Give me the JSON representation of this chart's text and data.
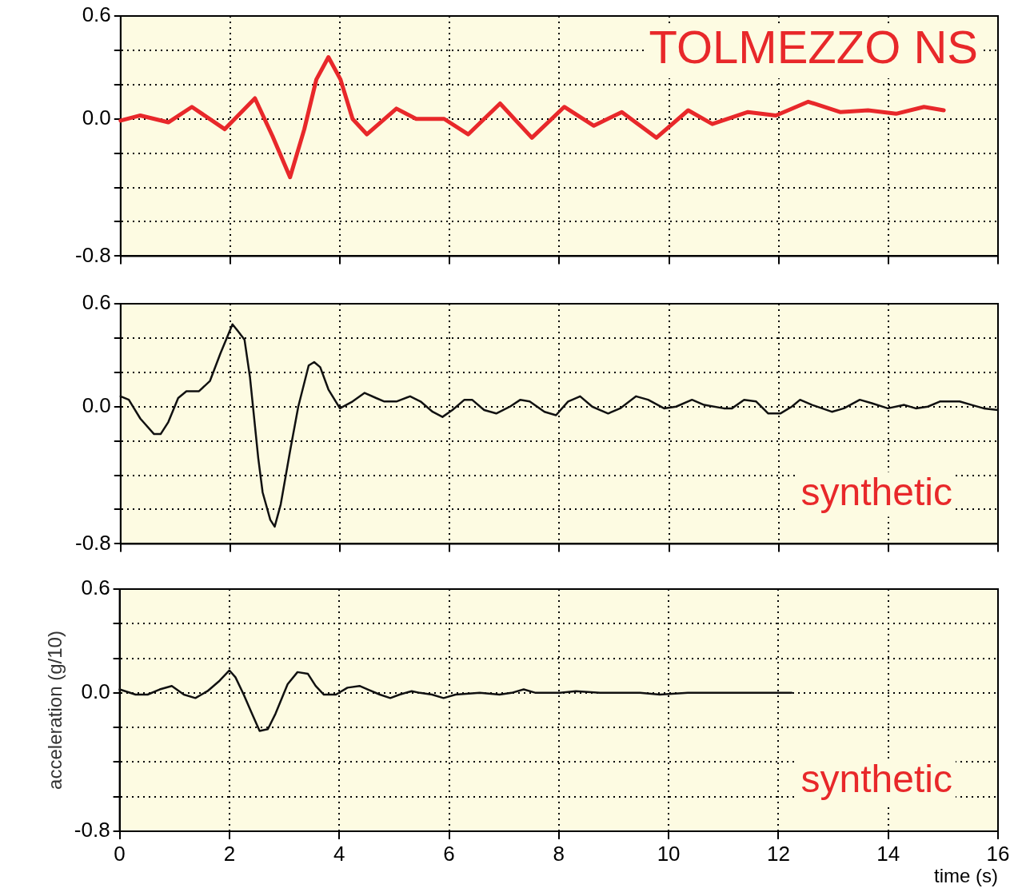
{
  "chart_data": [
    {
      "type": "line",
      "annotations": [
        "TOLMEZZO NS"
      ],
      "grid": true,
      "tick_labels": "y",
      "xlim": [
        0,
        16
      ],
      "xticks": [
        0,
        2,
        4,
        6,
        8,
        10,
        12,
        14,
        16
      ],
      "ylim": [
        -0.8,
        0.6
      ],
      "yticks": [
        -0.8,
        {
          "value": -0.6,
          "label": null
        },
        {
          "value": -0.4,
          "label": null
        },
        {
          "value": -0.2,
          "label": null
        },
        {
          "value": 0,
          "label": "0.0"
        },
        {
          "value": 0.2,
          "label": null
        },
        {
          "value": 0.4,
          "label": null
        },
        0.6
      ],
      "series": [
        {
          "color": "#e8282a",
          "x": [
            0,
            0.36,
            0.87,
            1.3,
            1.9,
            2.45,
            2.77,
            3.09,
            3.35,
            3.57,
            3.79,
            4.01,
            4.23,
            4.49,
            5.03,
            5.39,
            5.9,
            6.34,
            6.92,
            7.5,
            8.09,
            8.63,
            9.14,
            9.77,
            10.35,
            10.79,
            11.44,
            11.95,
            12.54,
            13.12,
            13.63,
            14.14,
            14.65,
            15.01
          ],
          "values": [
            -0.01,
            0.02,
            -0.02,
            0.07,
            -0.06,
            0.12,
            -0.1,
            -0.34,
            -0.06,
            0.23,
            0.36,
            0.23,
            0.0,
            -0.09,
            0.06,
            0.0,
            0.0,
            -0.09,
            0.09,
            -0.11,
            0.07,
            -0.04,
            0.04,
            -0.11,
            0.05,
            -0.03,
            0.04,
            0.02,
            0.1,
            0.04,
            0.05,
            0.03,
            0.07,
            0.05
          ]
        }
      ]
    },
    {
      "type": "line",
      "annotations": [
        "synthetic"
      ],
      "grid": true,
      "tick_labels": "y",
      "xlim": [
        0,
        16
      ],
      "xticks": [
        0,
        2,
        4,
        6,
        8,
        10,
        12,
        14,
        16
      ],
      "ylim": [
        -0.8,
        0.6
      ],
      "yticks": [
        -0.8,
        {
          "value": -0.6,
          "label": null
        },
        {
          "value": -0.4,
          "label": null
        },
        {
          "value": -0.2,
          "label": null
        },
        {
          "value": 0,
          "label": "0.0"
        },
        {
          "value": 0.2,
          "label": null
        },
        {
          "value": 0.4,
          "label": null
        },
        0.6
      ],
      "series": [
        {
          "color": "#111111",
          "x": [
            0,
            0.15,
            0.36,
            0.61,
            0.73,
            0.87,
            1.05,
            1.2,
            1.43,
            1.63,
            1.82,
            2.04,
            2.14,
            2.26,
            2.36,
            2.51,
            2.59,
            2.73,
            2.81,
            2.92,
            3.09,
            3.24,
            3.43,
            3.53,
            3.64,
            3.79,
            4.0,
            4.23,
            4.45,
            4.66,
            4.81,
            5.03,
            5.28,
            5.47,
            5.69,
            5.87,
            6.05,
            6.27,
            6.41,
            6.63,
            6.85,
            7.1,
            7.29,
            7.46,
            7.73,
            7.94,
            8.16,
            8.38,
            8.6,
            8.89,
            9.11,
            9.4,
            9.62,
            9.91,
            10.13,
            10.42,
            10.64,
            11.0,
            11.15,
            11.37,
            11.59,
            11.81,
            12.03,
            12.24,
            12.39,
            12.61,
            12.97,
            13.19,
            13.48,
            13.7,
            13.99,
            14.29,
            14.5,
            14.72,
            14.94,
            15.3,
            15.52,
            15.74,
            16.0
          ],
          "values": [
            0.06,
            0.04,
            -0.07,
            -0.16,
            -0.16,
            -0.09,
            0.05,
            0.09,
            0.09,
            0.15,
            0.31,
            0.48,
            0.44,
            0.39,
            0.17,
            -0.3,
            -0.5,
            -0.66,
            -0.7,
            -0.57,
            -0.26,
            0.0,
            0.24,
            0.26,
            0.23,
            0.1,
            -0.01,
            0.03,
            0.08,
            0.05,
            0.03,
            0.03,
            0.06,
            0.03,
            -0.03,
            -0.06,
            -0.02,
            0.04,
            0.04,
            -0.02,
            -0.04,
            0.0,
            0.04,
            0.03,
            -0.03,
            -0.05,
            0.03,
            0.06,
            0.0,
            -0.04,
            -0.01,
            0.06,
            0.04,
            -0.01,
            0.0,
            0.04,
            0.01,
            -0.01,
            -0.01,
            0.04,
            0.03,
            -0.04,
            -0.04,
            0.0,
            0.04,
            0.01,
            -0.03,
            -0.01,
            0.04,
            0.02,
            -0.01,
            0.01,
            -0.01,
            0.0,
            0.03,
            0.03,
            0.01,
            -0.01,
            -0.02
          ]
        }
      ]
    },
    {
      "type": "line",
      "annotations": [
        "synthetic"
      ],
      "xlabel": "time (s)",
      "ylabel": "acceleration (g/10)",
      "grid": true,
      "xlim": [
        0,
        16
      ],
      "xticks": [
        0,
        2,
        4,
        6,
        8,
        10,
        12,
        14,
        16
      ],
      "ylim": [
        -0.8,
        0.6
      ],
      "yticks": [
        -0.8,
        {
          "value": -0.6,
          "label": null
        },
        {
          "value": -0.4,
          "label": null
        },
        {
          "value": -0.2,
          "label": null
        },
        {
          "value": 0,
          "label": "0.0"
        },
        {
          "value": 0.2,
          "label": null
        },
        {
          "value": 0.4,
          "label": null
        },
        0.6
      ],
      "series": [
        {
          "color": "#111111",
          "x": [
            0,
            0.29,
            0.51,
            0.73,
            0.95,
            1.17,
            1.38,
            1.6,
            1.82,
            2.0,
            2.11,
            2.26,
            2.41,
            2.55,
            2.7,
            2.84,
            3.06,
            3.24,
            3.43,
            3.57,
            3.72,
            3.94,
            4.15,
            4.37,
            4.52,
            4.74,
            4.93,
            5.1,
            5.32,
            5.47,
            5.69,
            5.9,
            6.12,
            6.56,
            6.92,
            7.14,
            7.36,
            7.58,
            8.02,
            8.31,
            8.75,
            9.48,
            9.84,
            10.35,
            10.93,
            11.52,
            12.24
          ],
          "values": [
            0.02,
            -0.01,
            -0.01,
            0.02,
            0.04,
            -0.01,
            -0.03,
            0.01,
            0.07,
            0.13,
            0.09,
            -0.01,
            -0.12,
            -0.22,
            -0.21,
            -0.12,
            0.05,
            0.12,
            0.11,
            0.04,
            -0.01,
            -0.01,
            0.03,
            0.04,
            0.02,
            -0.01,
            -0.03,
            -0.01,
            0.01,
            0.0,
            -0.01,
            -0.03,
            -0.01,
            0.0,
            -0.01,
            0.0,
            0.02,
            0.0,
            0.0,
            0.01,
            0.0,
            0.0,
            -0.01,
            0.0,
            0.0,
            0.0,
            0.0
          ]
        }
      ]
    }
  ]
}
